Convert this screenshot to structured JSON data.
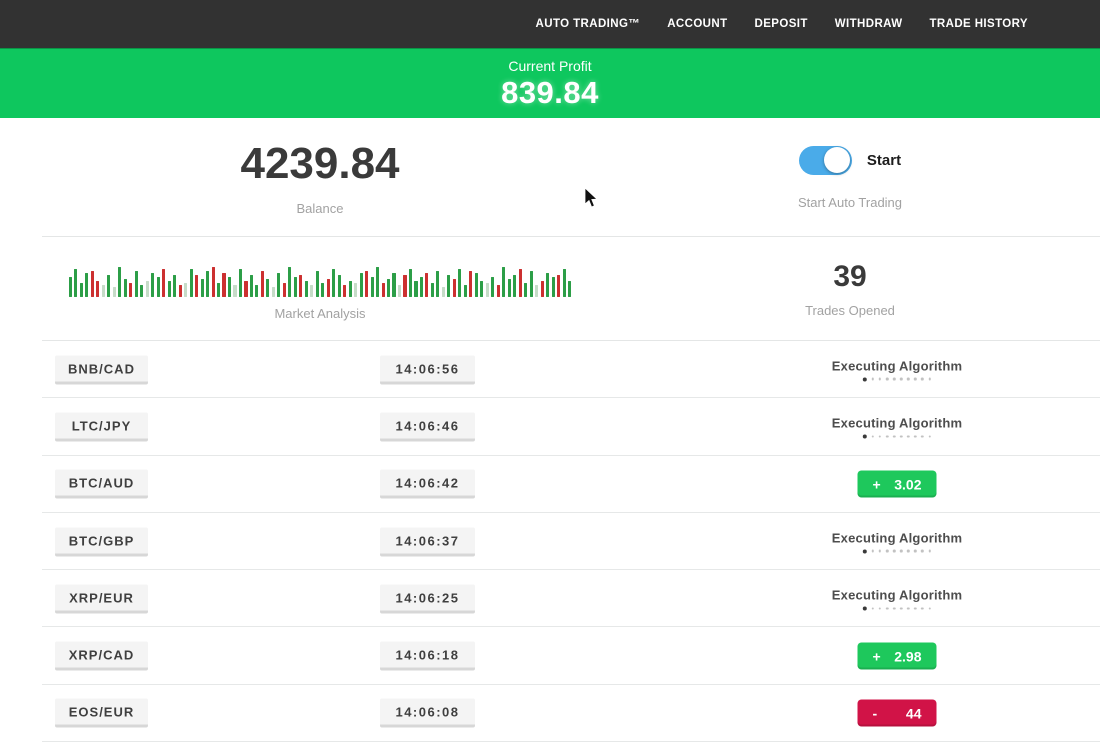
{
  "nav": {
    "items": [
      {
        "label": "AUTO TRADING™"
      },
      {
        "label": "ACCOUNT"
      },
      {
        "label": "DEPOSIT"
      },
      {
        "label": "WITHDRAW"
      },
      {
        "label": "TRADE HISTORY"
      }
    ]
  },
  "banner": {
    "title": "Current Profit",
    "value": "839.84"
  },
  "stats": {
    "balance": {
      "value": "4239.84",
      "label": "Balance"
    },
    "auto_trading": {
      "toggle_label": "Start",
      "label": "Start Auto Trading",
      "toggle_on": true
    },
    "market_analysis": {
      "label": "Market Analysis",
      "bars": [
        "g20",
        "g28",
        "g14",
        "g24",
        "r26",
        "r16",
        "l12",
        "g22",
        "l10",
        "g30",
        "g18",
        "r14",
        "g26",
        "g12",
        "l16",
        "g24",
        "g20",
        "r28",
        "g16",
        "g22",
        "r12",
        "l14",
        "g28",
        "r22",
        "g18",
        "g26",
        "r30",
        "g14",
        "r24",
        "g20",
        "l12",
        "g28",
        "r16",
        "g22",
        "g12",
        "r26",
        "g18",
        "l10",
        "g24",
        "r14",
        "g30",
        "g20",
        "r22",
        "g16",
        "l12",
        "g26",
        "g14",
        "r18",
        "g28",
        "g22",
        "r12",
        "g16",
        "l14",
        "g24",
        "r26",
        "g20",
        "g30",
        "r14",
        "g18",
        "g24",
        "l12",
        "r22",
        "g28",
        "g16",
        "g20",
        "r24",
        "g14",
        "g26",
        "l10",
        "g22",
        "r18",
        "g28",
        "g12",
        "r26",
        "g24",
        "g16",
        "l14",
        "g20",
        "r12",
        "g30",
        "g18",
        "g22",
        "r28",
        "g14",
        "g26",
        "l12",
        "r16",
        "g24",
        "g20",
        "r22",
        "g28",
        "g16"
      ]
    },
    "trades_opened": {
      "value": "39",
      "label": "Trades Opened"
    }
  },
  "trades": [
    {
      "pair": "BNB/CAD",
      "time": "14:06:56",
      "status": {
        "type": "executing",
        "label": "Executing Algorithm"
      }
    },
    {
      "pair": "LTC/JPY",
      "time": "14:06:46",
      "status": {
        "type": "executing",
        "label": "Executing Algorithm"
      }
    },
    {
      "pair": "BTC/AUD",
      "time": "14:06:42",
      "status": {
        "type": "profit",
        "sign": "+",
        "value": "3.02"
      }
    },
    {
      "pair": "BTC/GBP",
      "time": "14:06:37",
      "status": {
        "type": "executing",
        "label": "Executing Algorithm"
      }
    },
    {
      "pair": "XRP/EUR",
      "time": "14:06:25",
      "status": {
        "type": "executing",
        "label": "Executing Algorithm"
      }
    },
    {
      "pair": "XRP/CAD",
      "time": "14:06:18",
      "status": {
        "type": "profit",
        "sign": "+",
        "value": "2.98"
      }
    },
    {
      "pair": "EOS/EUR",
      "time": "14:06:08",
      "status": {
        "type": "loss",
        "sign": "-",
        "value": "44"
      }
    }
  ],
  "ui": {
    "executing_dots": 10
  },
  "colors": {
    "banner_green": "#0ec75e",
    "badge_green": "#1ec85c",
    "badge_red": "#d11347",
    "toggle_blue": "#4aabe9",
    "nav_bg": "#323232"
  }
}
